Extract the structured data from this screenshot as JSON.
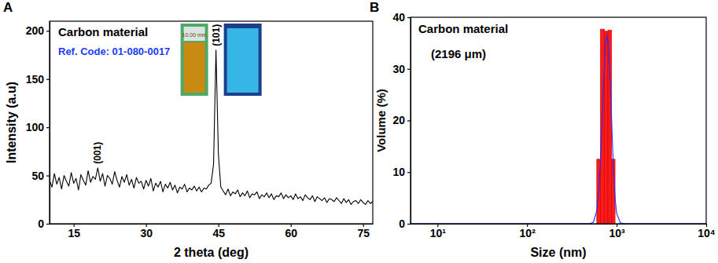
{
  "chart_data": [
    {
      "type": "line",
      "panel": "A",
      "title": "Carbon material",
      "subtitle": "Ref. Code: 01-080-0017",
      "x_label": "2 theta (deg)",
      "y_label": "Intensity (a.u)",
      "color": "#000000",
      "grid": false,
      "xlim": [
        10,
        77
      ],
      "xticks": [
        15,
        30,
        45,
        60,
        75
      ],
      "ylim": [
        0,
        210
      ],
      "yticks": [
        0,
        50,
        100,
        150,
        200
      ],
      "x": [
        10,
        10.5,
        11,
        11.5,
        12,
        12.5,
        13,
        13.5,
        14,
        14.5,
        15,
        15.5,
        16,
        16.5,
        17,
        17.5,
        18,
        18.5,
        19,
        19.5,
        20,
        20.5,
        21,
        21.5,
        22,
        22.5,
        23,
        23.5,
        24,
        24.5,
        25,
        25.5,
        26,
        26.5,
        27,
        27.5,
        28,
        28.5,
        29,
        29.5,
        30,
        30.5,
        31,
        31.5,
        32,
        32.5,
        33,
        33.5,
        34,
        34.5,
        35,
        35.5,
        36,
        36.5,
        37,
        37.5,
        38,
        38.5,
        39,
        39.5,
        40,
        40.5,
        41,
        41.5,
        42,
        42.5,
        43,
        43.5,
        44,
        44.5,
        45,
        45.5,
        46,
        46.5,
        47,
        47.5,
        48,
        48.5,
        49,
        49.5,
        50,
        50.5,
        51,
        51.5,
        52,
        52.5,
        53,
        53.5,
        54,
        54.5,
        55,
        55.5,
        56,
        56.5,
        57,
        57.5,
        58,
        58.5,
        59,
        59.5,
        60,
        60.5,
        61,
        61.5,
        62,
        62.5,
        63,
        63.5,
        64,
        64.5,
        65,
        65.5,
        66,
        66.5,
        67,
        67.5,
        68,
        68.5,
        69,
        69.5,
        70,
        70.5,
        71,
        71.5,
        72,
        72.5,
        73,
        73.5,
        74,
        74.5,
        75,
        75.5,
        76,
        76.5,
        77
      ],
      "values": [
        45,
        38,
        52,
        41,
        48,
        36,
        50,
        44,
        39,
        53,
        42,
        47,
        35,
        51,
        45,
        40,
        55,
        43,
        49,
        46,
        58,
        44,
        52,
        39,
        50,
        47,
        41,
        54,
        45,
        38,
        49,
        43,
        51,
        40,
        46,
        37,
        48,
        42,
        44,
        36,
        45,
        39,
        47,
        34,
        42,
        38,
        44,
        33,
        41,
        37,
        43,
        35,
        40,
        32,
        38,
        36,
        41,
        33,
        37,
        35,
        39,
        34,
        38,
        33,
        37,
        36,
        40,
        42,
        62,
        180,
        72,
        38,
        34,
        30,
        36,
        29,
        33,
        31,
        35,
        28,
        32,
        29,
        34,
        27,
        31,
        30,
        33,
        26,
        30,
        28,
        32,
        27,
        31,
        25,
        29,
        28,
        32,
        26,
        30,
        27,
        29,
        25,
        31,
        26,
        28,
        24,
        30,
        27,
        25,
        29,
        23,
        28,
        26,
        24,
        27,
        22,
        26,
        25,
        23,
        27,
        24,
        21,
        26,
        22,
        25,
        20,
        23,
        24,
        21,
        25,
        22,
        20,
        24,
        21,
        23
      ],
      "annotations": [
        {
          "text": "(001)",
          "x": 20
        },
        {
          "text": "(101)",
          "x": 44.5
        }
      ],
      "insets": [
        {
          "color": "#c98a12",
          "label": "10.00 mm"
        },
        {
          "color": "#35b6e6"
        }
      ]
    },
    {
      "type": "histogram",
      "panel": "B",
      "title": "Carbon material",
      "subtitle": "(2196 μm)",
      "x_label": "Size (nm)",
      "y_label": "Volume (%)",
      "color": "#ff1a1a",
      "grid": false,
      "log": "x",
      "xlim": [
        5,
        10000
      ],
      "xticks": [
        {
          "value": 10,
          "label": "10¹"
        },
        {
          "value": 100,
          "label": "10²"
        },
        {
          "value": 1000,
          "label": "10³"
        },
        {
          "value": 10000,
          "label": "10⁴"
        }
      ],
      "ylim": [
        0,
        40
      ],
      "yticks": [
        0,
        10,
        20,
        30,
        40
      ],
      "bins": [
        600,
        660,
        730,
        800,
        880,
        960
      ],
      "values": [
        12.5,
        37.7,
        37.3,
        37.5,
        12.5
      ],
      "series": [
        {
          "type": "line",
          "color": "#1f2eff",
          "x": [
            5,
            500,
            550,
            600,
            630,
            660,
            690,
            720,
            750,
            775,
            800,
            830,
            860,
            890,
            920,
            960,
            1000,
            1100,
            1200,
            10000
          ],
          "values": [
            0,
            0,
            0.3,
            2.5,
            6,
            12,
            20,
            28.5,
            34.5,
            36.5,
            35.5,
            31,
            24.5,
            17.5,
            11,
            5,
            2,
            0.2,
            0,
            0
          ]
        }
      ]
    }
  ]
}
